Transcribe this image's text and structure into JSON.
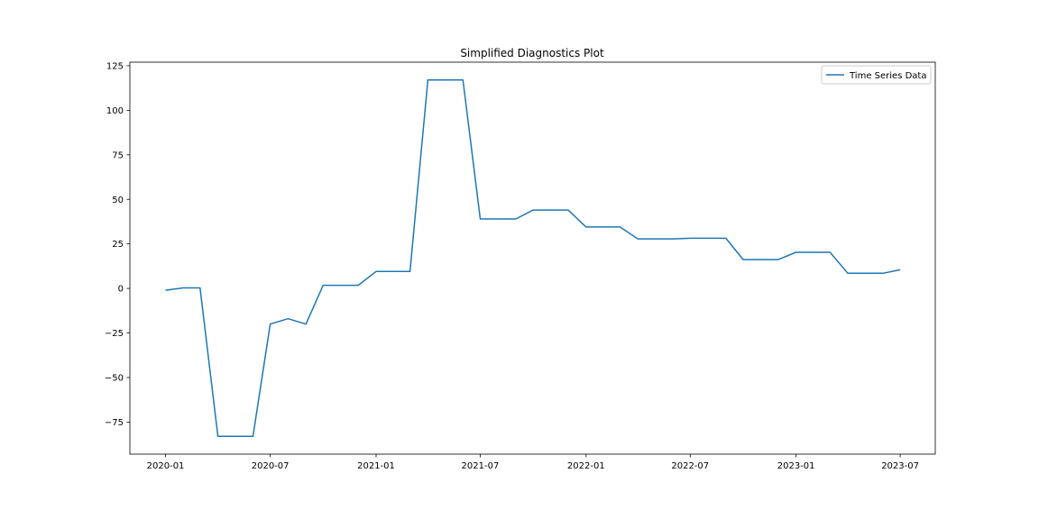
{
  "chart_data": {
    "type": "line",
    "title": "Simplified Diagnostics Plot",
    "xlabel": "",
    "ylabel": "",
    "x_ticks": [
      "2020-01",
      "2020-07",
      "2021-01",
      "2021-07",
      "2022-01",
      "2022-07",
      "2023-01",
      "2023-07"
    ],
    "y_ticks": [
      125,
      100,
      75,
      50,
      25,
      0,
      -25,
      -50,
      -75
    ],
    "xlim": [
      "2019-10-31",
      "2023-08-31"
    ],
    "ylim": [
      -93,
      127
    ],
    "grid": false,
    "legend_position": "top-right",
    "series": [
      {
        "name": "Time Series Data",
        "color": "#1f77b4",
        "x": [
          "2020-01-01",
          "2020-02-01",
          "2020-03-01",
          "2020-04-01",
          "2020-05-01",
          "2020-06-01",
          "2020-07-01",
          "2020-08-01",
          "2020-09-01",
          "2020-10-01",
          "2020-11-01",
          "2020-12-01",
          "2021-01-01",
          "2021-02-01",
          "2021-03-01",
          "2021-04-01",
          "2021-05-01",
          "2021-06-01",
          "2021-07-01",
          "2021-08-01",
          "2021-09-01",
          "2021-10-01",
          "2021-11-01",
          "2021-12-01",
          "2022-01-01",
          "2022-02-01",
          "2022-03-01",
          "2022-04-01",
          "2022-05-01",
          "2022-06-01",
          "2022-07-01",
          "2022-08-01",
          "2022-09-01",
          "2022-10-01",
          "2022-11-01",
          "2022-12-01",
          "2023-01-01",
          "2023-02-01",
          "2023-03-01",
          "2023-04-01",
          "2023-05-01",
          "2023-06-01",
          "2023-07-01"
        ],
        "y": [
          -1,
          0.3,
          0.3,
          -83,
          -83,
          -83,
          -20,
          -17,
          -20,
          1.8,
          1.8,
          1.8,
          9.5,
          9.5,
          9.5,
          117,
          117,
          117,
          39,
          39,
          39,
          44,
          44,
          44,
          34.5,
          34.5,
          34.5,
          27.8,
          27.8,
          27.8,
          28.2,
          28.2,
          28.2,
          16.2,
          16.2,
          16.2,
          20.3,
          20.3,
          20.3,
          8.5,
          8.5,
          8.5,
          10.5
        ]
      }
    ]
  }
}
